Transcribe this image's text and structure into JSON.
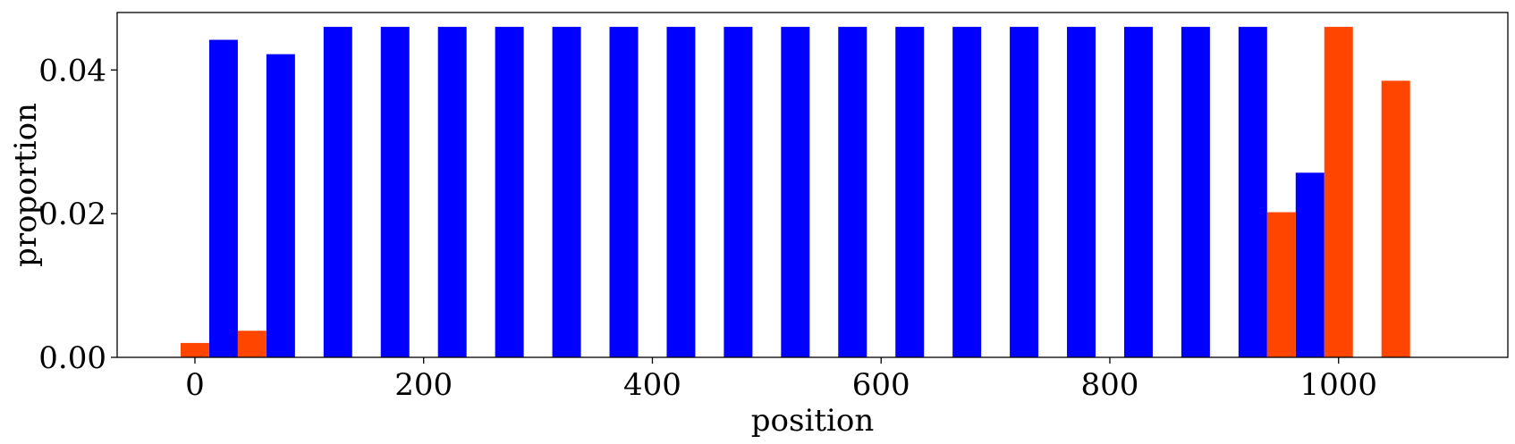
{
  "chart_data": {
    "type": "bar",
    "xlabel": "position",
    "ylabel": "proportion",
    "xlim": [
      -68,
      1148
    ],
    "ylim": [
      0,
      0.048
    ],
    "xticks": [
      0,
      200,
      400,
      600,
      800,
      1000
    ],
    "xtick_labels": [
      "0",
      "200",
      "400",
      "600",
      "800",
      "1000"
    ],
    "yticks": [
      0.0,
      0.02,
      0.04
    ],
    "ytick_labels": [
      "0.00",
      "0.02",
      "0.04"
    ],
    "bar_width": 25,
    "grid": false,
    "legend": "none",
    "series": [
      {
        "color": "#0000ff",
        "x": [
          25,
          75,
          125,
          175,
          225,
          275,
          325,
          375,
          425,
          475,
          525,
          575,
          625,
          675,
          725,
          775,
          825,
          875,
          925,
          975
        ],
        "values": [
          0.0442,
          0.0422,
          0.046,
          0.046,
          0.046,
          0.046,
          0.046,
          0.046,
          0.046,
          0.046,
          0.046,
          0.046,
          0.046,
          0.046,
          0.046,
          0.046,
          0.046,
          0.046,
          0.046,
          0.0257
        ]
      },
      {
        "color": "#ff4500",
        "x": [
          0,
          50,
          950,
          1000,
          1050
        ],
        "values": [
          0.002,
          0.0037,
          0.0202,
          0.046,
          0.0385
        ]
      }
    ]
  }
}
